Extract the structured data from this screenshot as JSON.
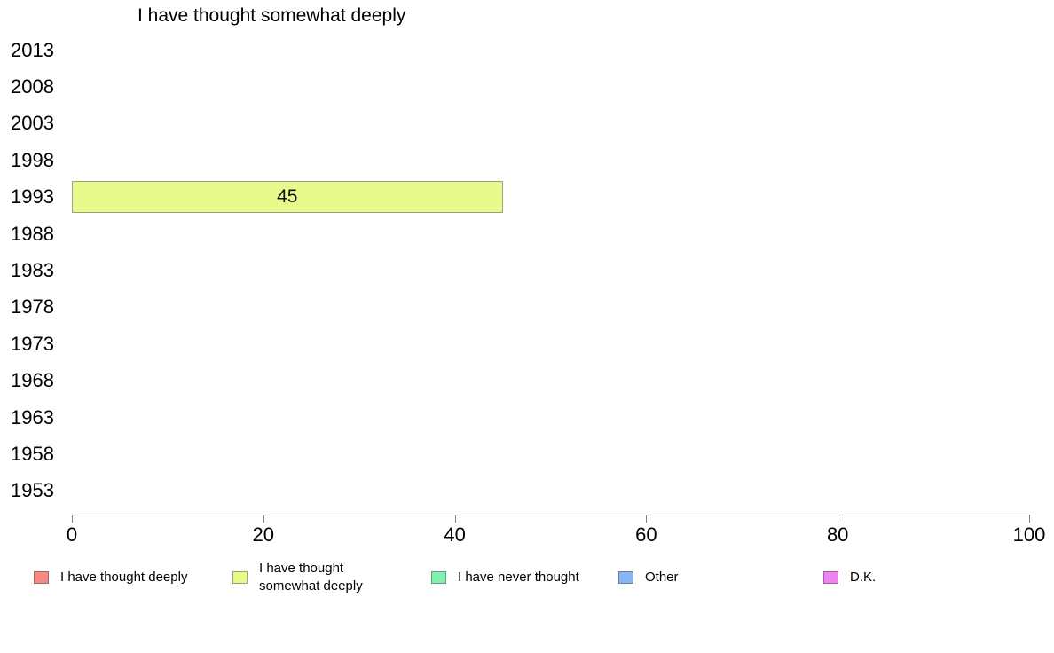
{
  "chart_data": {
    "type": "bar",
    "orientation": "horizontal",
    "title": "I have thought somewhat deeply",
    "categories": [
      "2013",
      "2008",
      "2003",
      "1998",
      "1993",
      "1988",
      "1983",
      "1978",
      "1973",
      "1968",
      "1963",
      "1958",
      "1953"
    ],
    "values": [
      null,
      null,
      null,
      null,
      45,
      null,
      null,
      null,
      null,
      null,
      null,
      null,
      null
    ],
    "data_labels": [
      null,
      null,
      null,
      null,
      "45",
      null,
      null,
      null,
      null,
      null,
      null,
      null,
      null
    ],
    "xlim": [
      0,
      100
    ],
    "xticks": [
      "0",
      "20",
      "40",
      "60",
      "80",
      "100"
    ],
    "grid": "off",
    "bar_color": "#e9fa8d",
    "bar_border_color": "#9c9f86",
    "axis_color": "#808080",
    "legend_position": "bottom",
    "legend": [
      {
        "label": "I have thought deeply",
        "color": "#f58a82"
      },
      {
        "label": "I have thought\nsomewhat deeply",
        "color": "#e9fa8d"
      },
      {
        "label": "I have never thought",
        "color": "#80f2ab"
      },
      {
        "label": "Other",
        "color": "#8ab5f5"
      },
      {
        "label": "D.K.",
        "color": "#ee82ee"
      }
    ]
  }
}
